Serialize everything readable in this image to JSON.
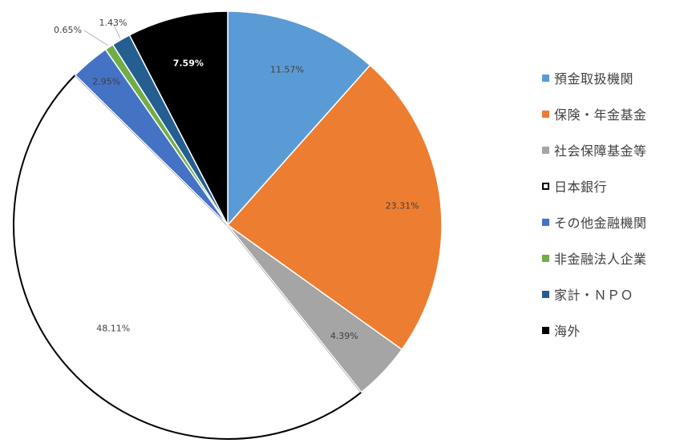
{
  "chart_data": {
    "type": "pie",
    "title": "",
    "legend_position": "right",
    "slices": [
      {
        "label": "預金取扱機関",
        "value": 11.57,
        "value_label": "11.57%",
        "color": "#5b9bd5"
      },
      {
        "label": "保険・年金基金",
        "value": 23.31,
        "value_label": "23.31%",
        "color": "#ed7d31"
      },
      {
        "label": "社会保障基金等",
        "value": 4.39,
        "value_label": "4.39%",
        "color": "#a5a5a5"
      },
      {
        "label": "日本銀行",
        "value": 48.11,
        "value_label": "48.11%",
        "color": "#ffffff",
        "outline": "#000000"
      },
      {
        "label": "その他金融機関",
        "value": 2.95,
        "value_label": "2.95%",
        "color": "#4472c4"
      },
      {
        "label": "非金融法人企業",
        "value": 0.65,
        "value_label": "0.65%",
        "color": "#70ad47"
      },
      {
        "label": "家計・ＮＰＯ",
        "value": 1.43,
        "value_label": "1.43%",
        "color": "#255e91"
      },
      {
        "label": "海外",
        "value": 7.59,
        "value_label": "7.59%",
        "color": "#000000"
      }
    ]
  }
}
